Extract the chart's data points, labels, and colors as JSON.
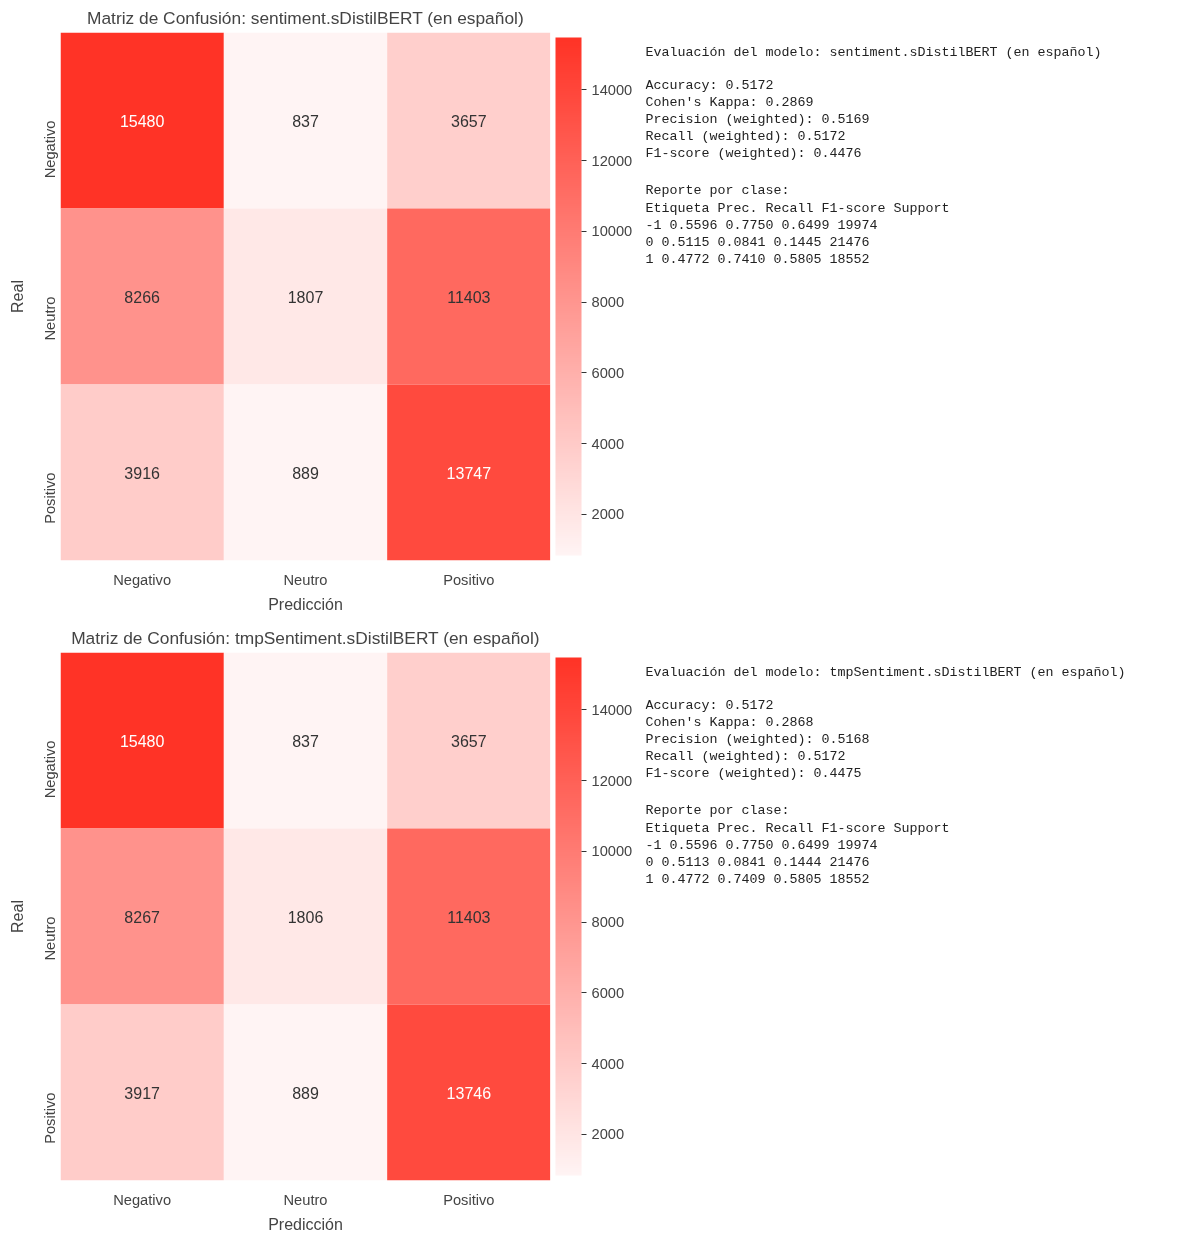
{
  "chart_data": [
    {
      "type": "heatmap",
      "title": "Matriz de Confusión: sentiment.sDistilBERT (en español)",
      "xlabel": "Predicción",
      "ylabel": "Real",
      "categories": [
        "Negativo",
        "Neutro",
        "Positivo"
      ],
      "y_categories": [
        "Negativo",
        "Neutro",
        "Positivo"
      ],
      "cells": [
        [
          15480,
          837,
          3657
        ],
        [
          8266,
          1807,
          11403
        ],
        [
          3916,
          889,
          13747
        ]
      ],
      "data_labels": true,
      "clim": [
        837,
        15480
      ],
      "cticks": [
        2000,
        4000,
        6000,
        8000,
        10000,
        12000,
        14000
      ],
      "colors": [
        "#fff4f4",
        "#ff3326"
      ]
    },
    {
      "type": "other",
      "title": "Evaluación del modelo: sentiment.sDistilBERT (en español)",
      "annotations": [
        "Accuracy: 0.5172",
        "Cohen's Kappa: 0.2869",
        "Precision (weighted): 0.5169",
        "Recall (weighted): 0.5172",
        "F1-score (weighted): 0.4476",
        "Reporte por clase:",
        "Etiqueta  Prec.   Recall  F1-score  Support",
        "      -1  0.5596  0.7750  0.6499  19974",
        "       0  0.5115  0.0841  0.1445  21476",
        "       1  0.4772  0.7410  0.5805  18552"
      ]
    },
    {
      "type": "heatmap",
      "title": "Matriz de Confusión: tmpSentiment.sDistilBERT (en español)",
      "xlabel": "Predicción",
      "ylabel": "Real",
      "categories": [
        "Negativo",
        "Neutro",
        "Positivo"
      ],
      "y_categories": [
        "Negativo",
        "Neutro",
        "Positivo"
      ],
      "cells": [
        [
          15480,
          837,
          3657
        ],
        [
          8267,
          1806,
          11403
        ],
        [
          3917,
          889,
          13746
        ]
      ],
      "data_labels": true,
      "clim": [
        837,
        15480
      ],
      "cticks": [
        2000,
        4000,
        6000,
        8000,
        10000,
        12000,
        14000
      ],
      "colors": [
        "#fff4f4",
        "#ff3326"
      ]
    },
    {
      "type": "other",
      "title": "Evaluación del modelo: tmpSentiment.sDistilBERT (en español)",
      "annotations": [
        "Accuracy: 0.5172",
        "Cohen's Kappa: 0.2868",
        "Precision (weighted): 0.5168",
        "Recall (weighted): 0.5172",
        "F1-score (weighted): 0.4475",
        "Reporte por clase:",
        "Etiqueta  Prec.   Recall  F1-score  Support",
        "      -1  0.5596  0.7750  0.6499  19974",
        "       0  0.5113  0.0841  0.1444  21476",
        "       1  0.4772  0.7409  0.5805  18552"
      ]
    }
  ]
}
